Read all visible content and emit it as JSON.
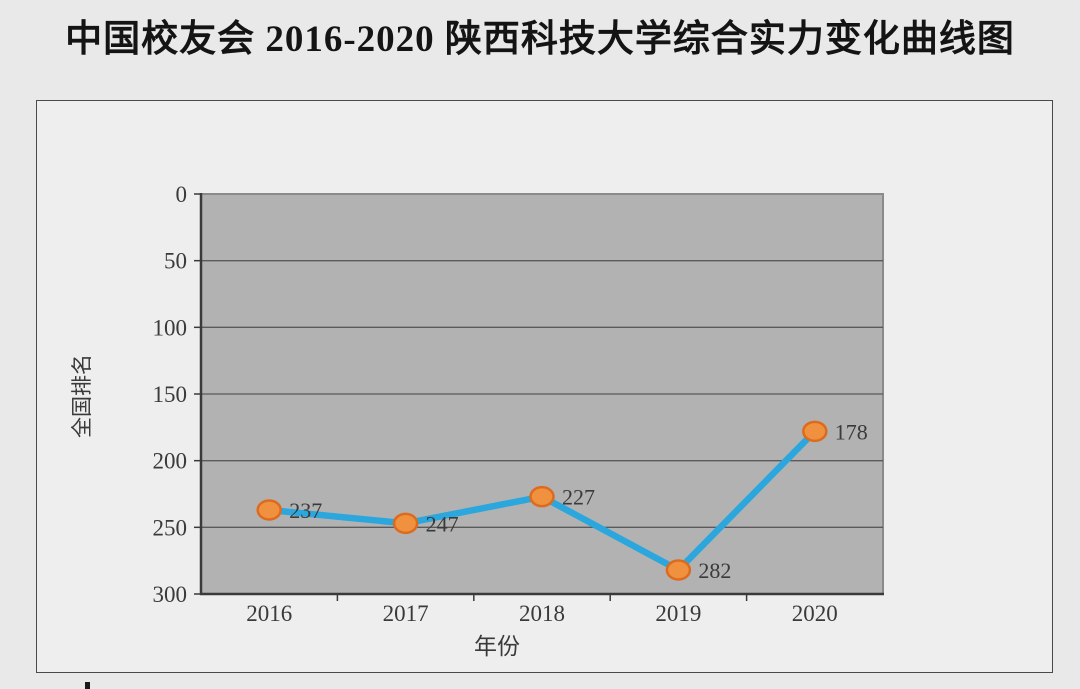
{
  "title": "中国校友会 2016-2020 陕西科技大学综合实力变化曲线图",
  "chart_data": {
    "type": "line",
    "categories": [
      "2016",
      "2017",
      "2018",
      "2019",
      "2020"
    ],
    "series": [
      {
        "name": "全国排名",
        "values": [
          237,
          247,
          227,
          282,
          178
        ]
      }
    ],
    "title": "中国校友会 2016-2020 陕西科技大学综合实力变化曲线图",
    "xlabel": "年份",
    "ylabel": "全国排名",
    "ylim": [
      0,
      300
    ],
    "y_inverted": true,
    "yticks": [
      0,
      50,
      100,
      150,
      200,
      250,
      300
    ],
    "grid": true,
    "data_labels_visible": true,
    "legend": "none",
    "colors": {
      "line": "#2BA7DE",
      "marker_fill": "#F0913F",
      "marker_stroke": "#DE6A1E",
      "plot_bg": "#B2B2B2",
      "plot_border": "#8A8A8A",
      "gridline": "#5A5A5A",
      "axis": "#3A3A3A",
      "text": "#3A3A3A",
      "page_bg": "#E9E9E9"
    }
  }
}
